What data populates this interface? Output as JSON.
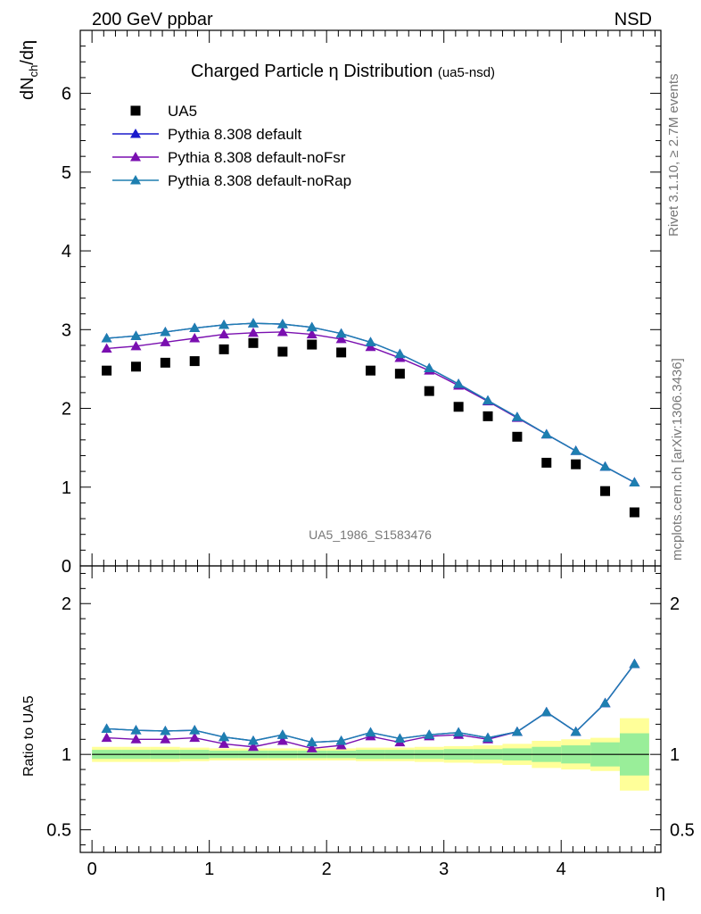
{
  "header": {
    "energy_label": "200 GeV ppbar",
    "process_label": "NSD",
    "title": "Charged Particle",
    "title_symbol": "η",
    "title_suffix": "Distribution",
    "title_tag": "(ua5-nsd)",
    "analysis_id": "UA5_1986_S1583476",
    "side_label_top": "Rivet 3.1.10, ≥ 2.7M events",
    "side_label_bottom": "mcplots.cern.ch [arXiv:1306.3436]"
  },
  "axes": {
    "upper_ylabel_main": "dN",
    "upper_ylabel_sub": "ch",
    "upper_ylabel_rest": "/dη",
    "lower_ylabel": "Ratio to UA5",
    "xlabel": "η"
  },
  "colors": {
    "data": "#000000",
    "default": "#1a1acc",
    "noFsr": "#7a0fb0",
    "noRap": "#1e7fb0",
    "band_outer": "#ffff99",
    "band_inner": "#99ee99"
  },
  "chart_data": [
    {
      "type": "scatter",
      "panel": "main",
      "xlim": [
        -0.1,
        4.85
      ],
      "ylim": [
        0,
        6.8
      ],
      "x_ticks": [
        0,
        1,
        2,
        3,
        4
      ],
      "y_ticks": [
        0,
        1,
        2,
        3,
        4,
        5,
        6
      ],
      "legend_placement": "top-left",
      "x": [
        0.125,
        0.375,
        0.625,
        0.875,
        1.125,
        1.375,
        1.625,
        1.875,
        2.125,
        2.375,
        2.625,
        2.875,
        3.125,
        3.375,
        3.625,
        3.875,
        4.125,
        4.375,
        4.625
      ],
      "series": [
        {
          "name": "UA5",
          "marker": "square",
          "values": [
            2.48,
            2.53,
            2.58,
            2.6,
            2.75,
            2.83,
            2.72,
            2.81,
            2.71,
            2.48,
            2.44,
            2.22,
            2.02,
            1.9,
            1.64,
            1.31,
            1.29,
            0.95,
            0.68
          ]
        },
        {
          "name": "Pythia 8.308 default",
          "marker": "triangle",
          "values": [
            2.89,
            2.92,
            2.97,
            3.02,
            3.06,
            3.08,
            3.07,
            3.03,
            2.95,
            2.84,
            2.69,
            2.51,
            2.31,
            2.1,
            1.89,
            1.67,
            1.46,
            1.26,
            1.06
          ]
        },
        {
          "name": "Pythia 8.308 default-noFsr",
          "marker": "triangle",
          "values": [
            2.76,
            2.79,
            2.84,
            2.89,
            2.94,
            2.96,
            2.97,
            2.94,
            2.88,
            2.78,
            2.64,
            2.48,
            2.29,
            2.09,
            1.88,
            1.67,
            1.46,
            1.26,
            1.06
          ]
        },
        {
          "name": "Pythia 8.308 default-noRap",
          "marker": "triangle",
          "values": [
            2.89,
            2.92,
            2.97,
            3.02,
            3.06,
            3.08,
            3.07,
            3.03,
            2.95,
            2.84,
            2.69,
            2.51,
            2.31,
            2.1,
            1.89,
            1.67,
            1.46,
            1.26,
            1.06
          ]
        }
      ]
    },
    {
      "type": "line",
      "panel": "ratio",
      "ylabel": "Ratio to UA5",
      "xlabel": "η",
      "xlim": [
        -0.1,
        4.85
      ],
      "ylim": [
        0.35,
        2.25
      ],
      "y_ticks": [
        0.5,
        1,
        2
      ],
      "y_tick_labels": [
        "0.5",
        "1",
        "2"
      ],
      "x_ticks": [
        0,
        1,
        2,
        3,
        4
      ],
      "x": [
        0.125,
        0.375,
        0.625,
        0.875,
        1.125,
        1.375,
        1.625,
        1.875,
        2.125,
        2.375,
        2.625,
        2.875,
        3.125,
        3.375,
        3.625,
        3.875,
        4.125,
        4.375,
        4.625
      ],
      "bin_edges": [
        0,
        0.25,
        0.5,
        0.75,
        1.0,
        1.25,
        1.5,
        1.75,
        2.0,
        2.25,
        2.5,
        2.75,
        3.0,
        3.25,
        3.5,
        3.75,
        4.0,
        4.25,
        4.5,
        4.75
      ],
      "band_inner_half": [
        0.03,
        0.03,
        0.03,
        0.03,
        0.025,
        0.025,
        0.025,
        0.025,
        0.025,
        0.03,
        0.03,
        0.03,
        0.035,
        0.035,
        0.04,
        0.05,
        0.06,
        0.08,
        0.14
      ],
      "band_outer_half": [
        0.05,
        0.05,
        0.05,
        0.045,
        0.04,
        0.04,
        0.04,
        0.04,
        0.04,
        0.045,
        0.045,
        0.05,
        0.055,
        0.06,
        0.07,
        0.09,
        0.1,
        0.11,
        0.24
      ],
      "series": [
        {
          "name": "Pythia 8.308 default",
          "values": [
            1.17,
            1.16,
            1.155,
            1.16,
            1.115,
            1.09,
            1.13,
            1.08,
            1.09,
            1.145,
            1.105,
            1.13,
            1.145,
            1.11,
            1.15,
            1.28,
            1.15,
            1.34,
            1.6
          ]
        },
        {
          "name": "Pythia 8.308 default-noFsr",
          "values": [
            1.11,
            1.1,
            1.1,
            1.11,
            1.07,
            1.05,
            1.09,
            1.04,
            1.06,
            1.12,
            1.08,
            1.12,
            1.13,
            1.1,
            1.15,
            1.28,
            1.15,
            1.34,
            1.6
          ]
        },
        {
          "name": "Pythia 8.308 default-noRap",
          "values": [
            1.17,
            1.16,
            1.155,
            1.16,
            1.115,
            1.09,
            1.13,
            1.08,
            1.09,
            1.145,
            1.105,
            1.13,
            1.145,
            1.11,
            1.15,
            1.28,
            1.15,
            1.34,
            1.6
          ]
        }
      ]
    }
  ]
}
